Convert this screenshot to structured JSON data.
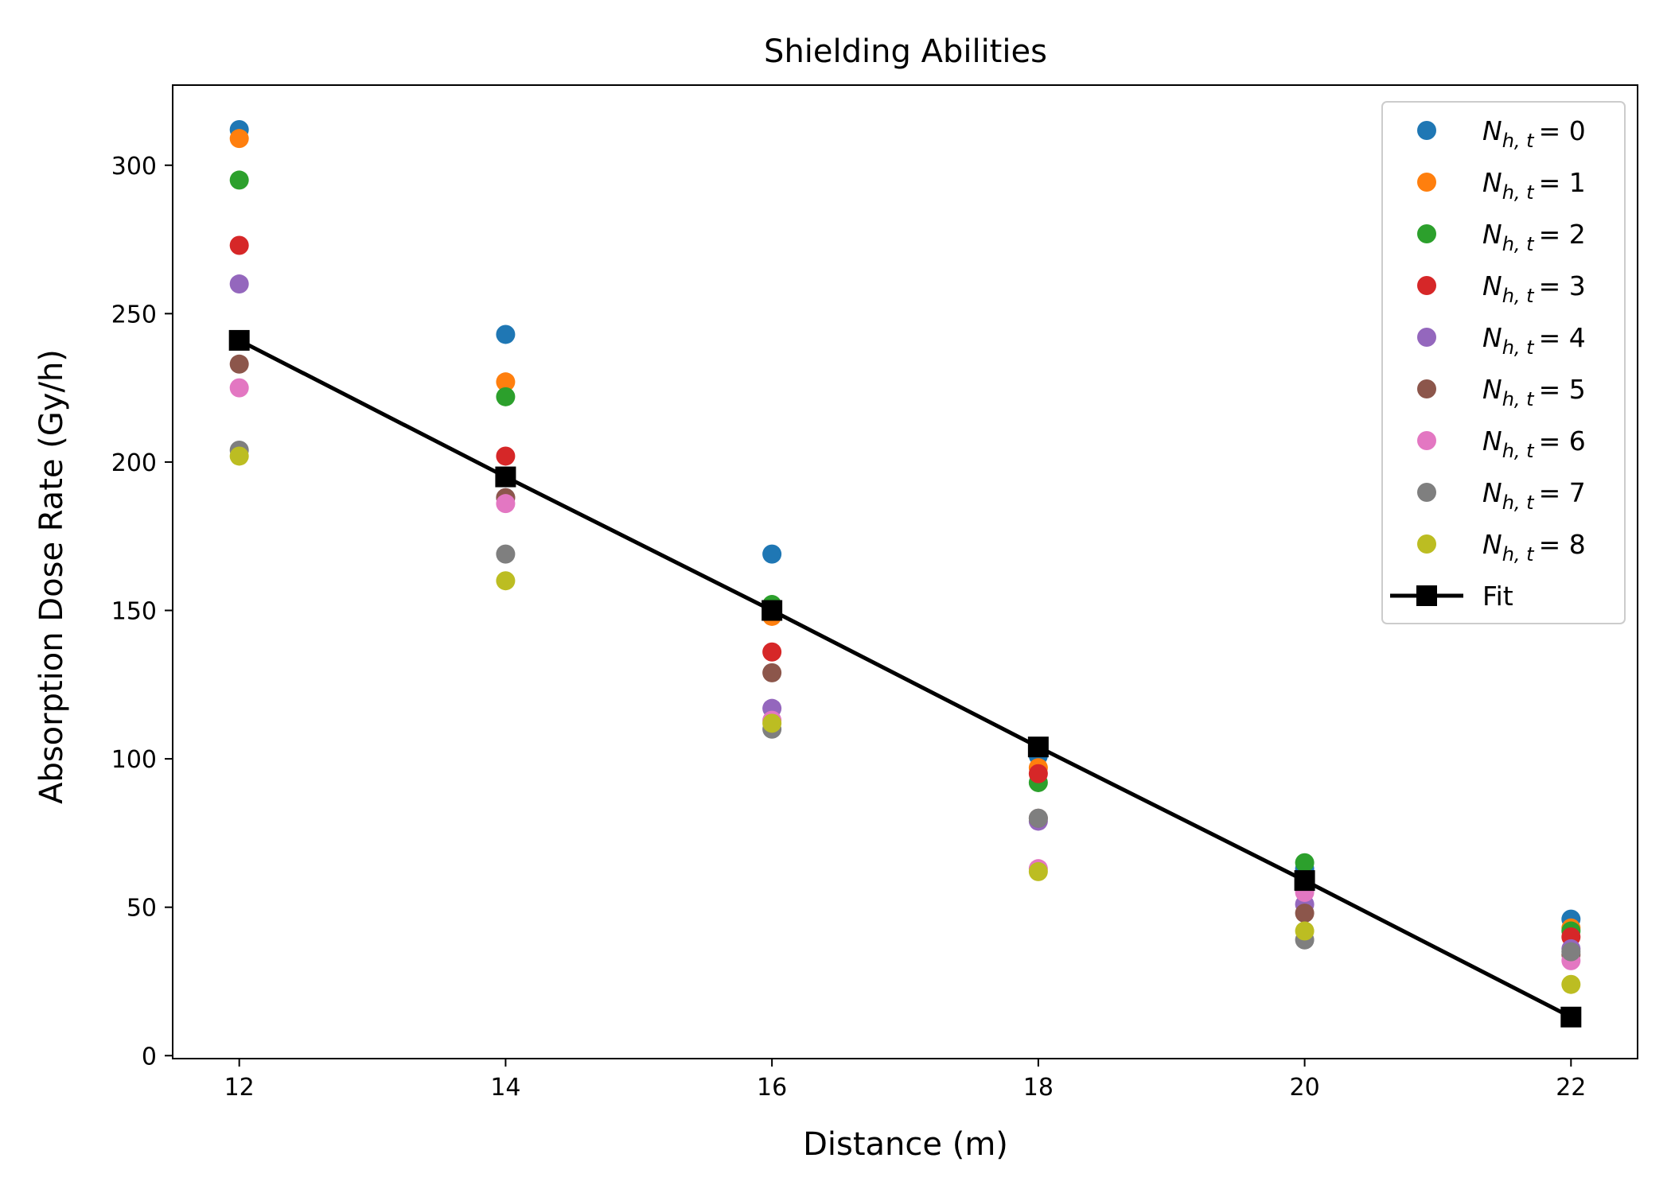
{
  "chart_data": {
    "type": "scatter",
    "title": "Shielding Abilities",
    "xlabel": "Distance (m)",
    "ylabel": "Absorption Dose Rate (Gy/h)",
    "xlim": [
      11.5,
      22.5
    ],
    "ylim": [
      -1,
      327
    ],
    "xticks": [
      "12",
      "14",
      "16",
      "18",
      "20",
      "22"
    ],
    "yticks": [
      "0",
      "50",
      "100",
      "150",
      "200",
      "250",
      "300"
    ],
    "grid": false,
    "legend_position": "top-right",
    "x": [
      12,
      14,
      16,
      18,
      20,
      22
    ],
    "series": [
      {
        "name": "N_{h,t} = 0",
        "name_main": "N",
        "name_sub": "h, t",
        "name_value": "= 0",
        "color": "#1f77b4",
        "values": [
          312,
          243,
          169,
          101,
          63,
          46
        ]
      },
      {
        "name": "N_{h,t} = 1",
        "name_main": "N",
        "name_sub": "h, t",
        "name_value": "= 1",
        "color": "#ff7f0e",
        "values": [
          309,
          227,
          148,
          97,
          60,
          43
        ]
      },
      {
        "name": "N_{h,t} = 2",
        "name_main": "N",
        "name_sub": "h, t",
        "name_value": "= 2",
        "color": "#2ca02c",
        "values": [
          295,
          222,
          152,
          92,
          65,
          42
        ]
      },
      {
        "name": "N_{h,t} = 3",
        "name_main": "N",
        "name_sub": "h, t",
        "name_value": "= 3",
        "color": "#d62728",
        "values": [
          273,
          202,
          136,
          95,
          58,
          40
        ]
      },
      {
        "name": "N_{h,t} = 4",
        "name_main": "N",
        "name_sub": "h, t",
        "name_value": "= 4",
        "color": "#9467bd",
        "values": [
          260,
          188,
          117,
          79,
          51,
          36
        ]
      },
      {
        "name": "N_{h,t} = 5",
        "name_main": "N",
        "name_sub": "h, t",
        "name_value": "= 5",
        "color": "#8c564b",
        "values": [
          233,
          188,
          129,
          80,
          48,
          34
        ]
      },
      {
        "name": "N_{h,t} = 6",
        "name_main": "N",
        "name_sub": "h, t",
        "name_value": "= 6",
        "color": "#e377c2",
        "values": [
          225,
          186,
          113,
          63,
          55,
          32
        ]
      },
      {
        "name": "N_{h,t} = 7",
        "name_main": "N",
        "name_sub": "h, t",
        "name_value": "= 7",
        "color": "#7f7f7f",
        "values": [
          204,
          169,
          110,
          80,
          39,
          35
        ]
      },
      {
        "name": "N_{h,t} = 8",
        "name_main": "N",
        "name_sub": "h, t",
        "name_value": "= 8",
        "color": "#bcbd22",
        "values": [
          202,
          160,
          112,
          62,
          42,
          24
        ]
      }
    ],
    "fit": {
      "name": "Fit",
      "color": "#000000",
      "values": [
        241,
        195,
        150,
        104,
        59,
        13
      ]
    }
  }
}
